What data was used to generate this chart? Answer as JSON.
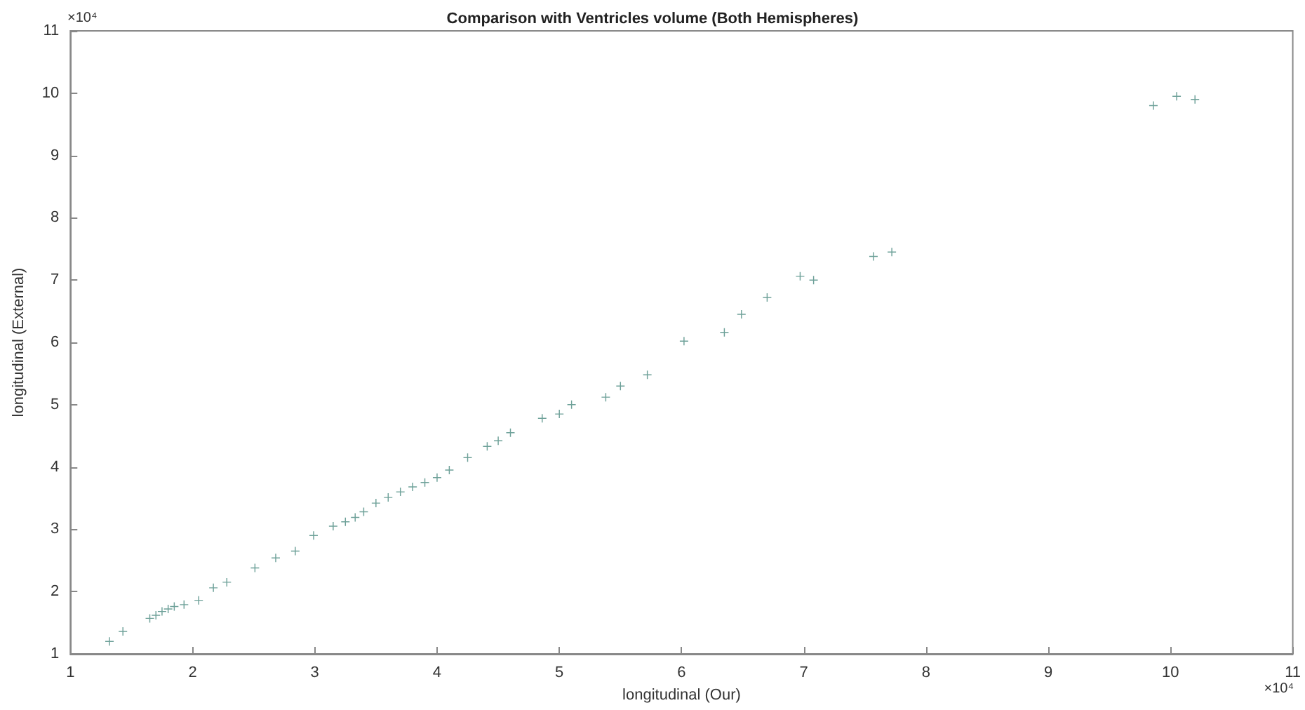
{
  "chart_data": {
    "type": "scatter",
    "title": "Comparison with Ventricles volume (Both Hemispheres)",
    "xlabel": "longitudinal (Our)",
    "ylabel": "longitudinal (External)",
    "annotations": [
      "×10⁴",
      "×10⁴"
    ],
    "x": [
      1.32,
      1.43,
      1.65,
      1.7,
      1.75,
      1.8,
      1.85,
      1.93,
      2.05,
      2.17,
      2.28,
      2.51,
      2.68,
      2.84,
      2.99,
      3.15,
      3.25,
      3.33,
      3.4,
      3.5,
      3.6,
      3.7,
      3.8,
      3.9,
      4.0,
      4.1,
      4.25,
      4.41,
      4.5,
      4.6,
      4.86,
      5.0,
      5.1,
      5.38,
      5.5,
      5.72,
      6.02,
      6.35,
      6.49,
      6.7,
      6.97,
      7.08,
      7.57,
      7.72,
      9.86,
      10.05,
      10.2
    ],
    "values": [
      1.2,
      1.36,
      1.57,
      1.62,
      1.68,
      1.72,
      1.76,
      1.79,
      1.86,
      2.06,
      2.15,
      2.38,
      2.54,
      2.65,
      2.9,
      3.05,
      3.12,
      3.19,
      3.28,
      3.42,
      3.51,
      3.6,
      3.68,
      3.75,
      3.83,
      3.95,
      4.15,
      4.33,
      4.42,
      4.55,
      4.78,
      4.85,
      5.0,
      5.12,
      5.3,
      5.48,
      6.02,
      6.16,
      6.45,
      6.72,
      7.06,
      7.0,
      7.38,
      7.45,
      9.8,
      9.95,
      9.9
    ],
    "color": "#4a8a80",
    "marker": "cross",
    "grid": false,
    "xlim": [
      1,
      11
    ],
    "ylim": [
      1,
      11
    ],
    "xticks": [
      1,
      2,
      3,
      4,
      5,
      6,
      7,
      8,
      9,
      10,
      11
    ],
    "yticks": [
      1,
      2,
      3,
      4,
      5,
      6,
      7,
      8,
      9,
      10,
      11
    ]
  }
}
